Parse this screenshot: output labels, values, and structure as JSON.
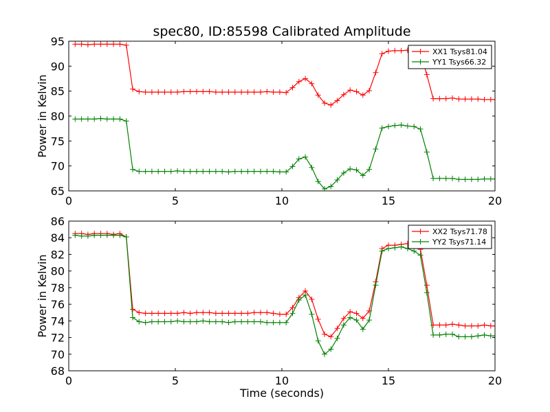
{
  "title": "spec80, ID:85598 Calibrated Amplitude",
  "chart_data": [
    {
      "type": "line",
      "title": "spec80, ID:85598 Calibrated Amplitude",
      "xlabel": "",
      "ylabel": "Power in Kelvin",
      "xlim": [
        0,
        20
      ],
      "ylim": [
        65,
        95
      ],
      "xticks": [
        0,
        5,
        10,
        15,
        20
      ],
      "yticks": [
        65,
        70,
        75,
        80,
        85,
        90,
        95
      ],
      "grid": false,
      "legend_position": "top-right",
      "x": [
        0.3,
        0.6,
        0.9,
        1.2,
        1.5,
        1.8,
        2.1,
        2.4,
        2.7,
        3.0,
        3.3,
        3.6,
        3.9,
        4.2,
        4.5,
        4.8,
        5.1,
        5.4,
        5.7,
        6.0,
        6.3,
        6.6,
        6.9,
        7.2,
        7.5,
        7.8,
        8.1,
        8.4,
        8.7,
        9.0,
        9.3,
        9.6,
        9.9,
        10.2,
        10.5,
        10.8,
        11.1,
        11.4,
        11.7,
        12.0,
        12.3,
        12.6,
        12.9,
        13.2,
        13.5,
        13.8,
        14.1,
        14.4,
        14.7,
        15.0,
        15.3,
        15.6,
        15.9,
        16.2,
        16.5,
        16.8,
        17.1,
        17.4,
        17.7,
        18.0,
        18.3,
        18.6,
        18.9,
        19.2,
        19.5,
        19.8,
        20.0
      ],
      "series": [
        {
          "name": "XX1 Tsys81.04",
          "color": "#ff0000",
          "values": [
            94.4,
            94.4,
            94.3,
            94.4,
            94.4,
            94.4,
            94.4,
            94.4,
            94.2,
            85.4,
            84.9,
            84.8,
            84.8,
            84.8,
            84.8,
            84.8,
            84.8,
            84.9,
            84.9,
            84.9,
            84.9,
            84.9,
            84.8,
            84.8,
            84.8,
            84.8,
            84.8,
            84.8,
            84.8,
            84.8,
            84.9,
            84.8,
            84.8,
            84.7,
            85.7,
            86.9,
            87.5,
            86.5,
            84.2,
            82.6,
            82.2,
            83.1,
            84.3,
            85.2,
            84.9,
            84.2,
            85.1,
            88.7,
            92.5,
            93.0,
            93.1,
            93.1,
            93.2,
            92.9,
            92.8,
            88.3,
            83.5,
            83.5,
            83.5,
            83.6,
            83.4,
            83.4,
            83.4,
            83.4,
            83.3,
            83.3,
            83.3
          ]
        },
        {
          "name": "YY1 Tsys66.32",
          "color": "#008000",
          "values": [
            79.4,
            79.4,
            79.4,
            79.4,
            79.5,
            79.4,
            79.4,
            79.4,
            79.0,
            69.3,
            68.9,
            68.9,
            68.9,
            68.9,
            68.9,
            68.9,
            69.0,
            68.9,
            68.9,
            68.9,
            68.9,
            68.9,
            68.9,
            68.9,
            68.8,
            68.9,
            68.9,
            68.9,
            68.9,
            68.9,
            68.9,
            68.9,
            68.8,
            68.8,
            69.9,
            71.4,
            71.8,
            69.7,
            66.9,
            65.4,
            65.9,
            67.2,
            68.6,
            69.4,
            69.2,
            68.1,
            69.3,
            73.4,
            77.6,
            77.9,
            78.1,
            78.2,
            78.0,
            77.9,
            77.4,
            72.8,
            67.5,
            67.5,
            67.5,
            67.5,
            67.3,
            67.3,
            67.3,
            67.3,
            67.4,
            67.4,
            67.4
          ]
        }
      ]
    },
    {
      "type": "line",
      "title": "",
      "xlabel": "Time (seconds)",
      "ylabel": "Power in Kelvin",
      "xlim": [
        0,
        20
      ],
      "ylim": [
        68,
        86
      ],
      "xticks": [
        0,
        5,
        10,
        15,
        20
      ],
      "yticks": [
        68,
        70,
        72,
        74,
        76,
        78,
        80,
        82,
        84,
        86
      ],
      "grid": false,
      "legend_position": "top-right",
      "x": [
        0.3,
        0.6,
        0.9,
        1.2,
        1.5,
        1.8,
        2.1,
        2.4,
        2.7,
        3.0,
        3.3,
        3.6,
        3.9,
        4.2,
        4.5,
        4.8,
        5.1,
        5.4,
        5.7,
        6.0,
        6.3,
        6.6,
        6.9,
        7.2,
        7.5,
        7.8,
        8.1,
        8.4,
        8.7,
        9.0,
        9.3,
        9.6,
        9.9,
        10.2,
        10.5,
        10.8,
        11.1,
        11.4,
        11.7,
        12.0,
        12.3,
        12.6,
        12.9,
        13.2,
        13.5,
        13.8,
        14.1,
        14.4,
        14.7,
        15.0,
        15.3,
        15.6,
        15.9,
        16.2,
        16.5,
        16.8,
        17.1,
        17.4,
        17.7,
        18.0,
        18.3,
        18.6,
        18.9,
        19.2,
        19.5,
        19.8,
        20.0
      ],
      "series": [
        {
          "name": "XX2 Tsys71.78",
          "color": "#ff0000",
          "values": [
            84.5,
            84.5,
            84.4,
            84.5,
            84.5,
            84.5,
            84.4,
            84.5,
            84.1,
            75.4,
            75.0,
            74.9,
            74.9,
            74.9,
            74.9,
            74.9,
            74.9,
            75.0,
            74.9,
            75.0,
            75.0,
            75.0,
            74.9,
            74.9,
            74.9,
            74.9,
            74.9,
            74.9,
            75.0,
            75.0,
            75.0,
            74.9,
            74.8,
            74.8,
            75.6,
            76.8,
            77.6,
            76.6,
            74.2,
            72.4,
            72.1,
            73.1,
            74.3,
            75.1,
            74.9,
            74.3,
            75.2,
            78.7,
            82.7,
            83.1,
            83.1,
            83.2,
            83.3,
            83.0,
            82.6,
            78.3,
            73.5,
            73.5,
            73.5,
            73.6,
            73.5,
            73.4,
            73.4,
            73.4,
            73.5,
            73.4,
            73.4
          ]
        },
        {
          "name": "YY2 Tsys71.14",
          "color": "#008000",
          "values": [
            84.3,
            84.2,
            84.2,
            84.3,
            84.3,
            84.3,
            84.3,
            84.3,
            84.1,
            74.4,
            73.9,
            73.8,
            73.9,
            73.9,
            73.9,
            73.9,
            74.0,
            73.9,
            73.9,
            73.9,
            74.0,
            73.9,
            73.9,
            73.9,
            73.8,
            73.9,
            73.9,
            73.9,
            73.9,
            73.9,
            73.8,
            73.8,
            73.8,
            73.8,
            74.9,
            76.5,
            77.1,
            74.8,
            71.6,
            70.0,
            70.6,
            71.9,
            73.5,
            74.4,
            74.1,
            73.0,
            74.1,
            78.3,
            82.4,
            82.7,
            82.8,
            82.9,
            82.7,
            82.4,
            81.9,
            77.4,
            72.3,
            72.3,
            72.4,
            72.4,
            72.1,
            72.1,
            72.1,
            72.2,
            72.3,
            72.2,
            72.2
          ]
        }
      ]
    }
  ]
}
